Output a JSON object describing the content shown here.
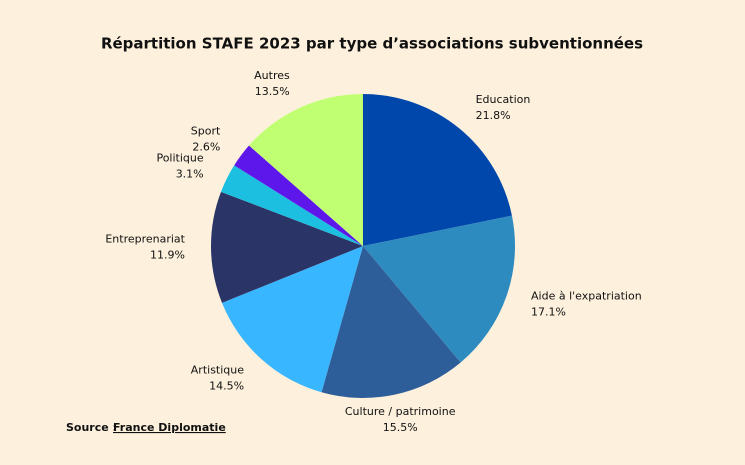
{
  "chart_data": {
    "type": "pie",
    "title": "Répartition STAFE 2023 par type d’associations subventionnées",
    "categories": [
      "Education",
      "Aide à l'expatriation",
      "Culture / patrimoine",
      "Artistique",
      "Entreprenariat",
      "Politique",
      "Sport",
      "Autres"
    ],
    "values": [
      21.8,
      17.1,
      15.5,
      14.5,
      11.9,
      3.1,
      2.6,
      13.5
    ],
    "value_labels": [
      "21.8%",
      "17.1%",
      "15.5%",
      "14.5%",
      "11.9%",
      "3.1%",
      "2.6%",
      "13.5%"
    ],
    "colors": [
      "#0047ab",
      "#2e8bc0",
      "#2e5e99",
      "#38b6ff",
      "#2b3467",
      "#1cbfe0",
      "#5e17eb",
      "#c1ff72"
    ],
    "source_label": "Source :",
    "source": "France Diplomatie"
  }
}
